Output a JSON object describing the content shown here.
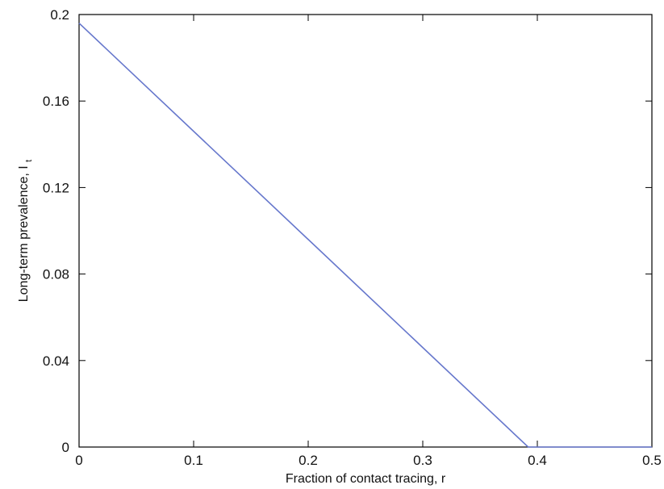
{
  "chart_data": {
    "type": "line",
    "title": "",
    "xlabel": "Fraction of contact tracing, r",
    "ylabel": "Long-term prevalence, I",
    "ylabel_subscript": "t",
    "xlim": [
      0,
      0.5
    ],
    "ylim": [
      0,
      0.2
    ],
    "x_ticks": [
      0,
      0.1,
      0.2,
      0.3,
      0.4,
      0.5
    ],
    "x_tick_labels": [
      "0",
      "0.1",
      "0.2",
      "0.3",
      "0.4",
      "0.5"
    ],
    "y_ticks": [
      0,
      0.04,
      0.08,
      0.12,
      0.16,
      0.2
    ],
    "y_tick_labels": [
      "0",
      "0.04",
      "0.08",
      "0.12",
      "0.16",
      "0.2"
    ],
    "grid": false,
    "line_color": "#6677cc",
    "series": [
      {
        "x": [
          0,
          0.392,
          0.5
        ],
        "y": [
          0.196,
          0,
          0
        ]
      }
    ]
  }
}
